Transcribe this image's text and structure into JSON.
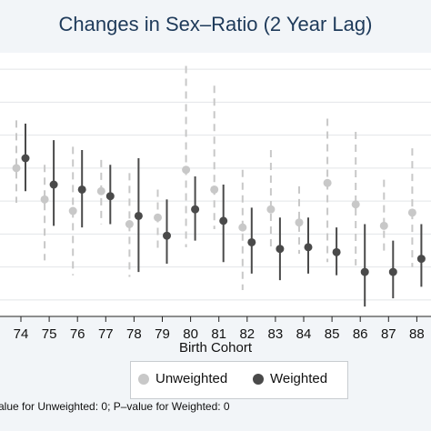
{
  "chart_data": {
    "type": "scatter",
    "title": "Changes in Sex–Ratio (2 Year Lag)",
    "xlabel": "Birth Cohort",
    "ylabel": "",
    "categories": [
      "74",
      "75",
      "76",
      "77",
      "78",
      "79",
      "80",
      "81",
      "82",
      "83",
      "84",
      "85",
      "86",
      "87",
      "88"
    ],
    "series": [
      {
        "name": "Unweighted",
        "color": "#c8c8c8",
        "errorbar_style": "dashed",
        "points": [
          {
            "x": "74",
            "y": 0.6,
            "lo": 0.39,
            "hi": 0.89
          },
          {
            "x": "75",
            "y": 0.41,
            "lo": 0.04,
            "hi": 0.62
          },
          {
            "x": "76",
            "y": 0.34,
            "lo": -0.05,
            "hi": 0.73
          },
          {
            "x": "77",
            "y": 0.46,
            "lo": 0.26,
            "hi": 0.65
          },
          {
            "x": "78",
            "y": 0.26,
            "lo": -0.06,
            "hi": 0.57
          },
          {
            "x": "79",
            "y": 0.3,
            "lo": 0.11,
            "hi": 0.47
          },
          {
            "x": "80",
            "y": 0.59,
            "lo": 0.12,
            "hi": 1.22
          },
          {
            "x": "81",
            "y": 0.47,
            "lo": 0.23,
            "hi": 1.1
          },
          {
            "x": "82",
            "y": 0.24,
            "lo": -0.14,
            "hi": 0.59
          },
          {
            "x": "83",
            "y": 0.35,
            "lo": 0.11,
            "hi": 0.71
          },
          {
            "x": "84",
            "y": 0.27,
            "lo": 0.08,
            "hi": 0.49
          },
          {
            "x": "85",
            "y": 0.51,
            "lo": 0.03,
            "hi": 0.9
          },
          {
            "x": "86",
            "y": 0.38,
            "lo": 0.01,
            "hi": 0.82
          },
          {
            "x": "87",
            "y": 0.25,
            "lo": 0.07,
            "hi": 0.53
          },
          {
            "x": "88",
            "y": 0.33,
            "lo": 0.0,
            "hi": 0.72
          }
        ]
      },
      {
        "name": "Weighted",
        "color": "#4a4a4a",
        "errorbar_style": "solid",
        "points": [
          {
            "x": "74",
            "y": 0.66,
            "lo": 0.46,
            "hi": 0.87
          },
          {
            "x": "75",
            "y": 0.5,
            "lo": 0.25,
            "hi": 0.77
          },
          {
            "x": "76",
            "y": 0.47,
            "lo": 0.24,
            "hi": 0.71
          },
          {
            "x": "77",
            "y": 0.43,
            "lo": 0.26,
            "hi": 0.62
          },
          {
            "x": "78",
            "y": 0.31,
            "lo": -0.03,
            "hi": 0.66
          },
          {
            "x": "79",
            "y": 0.19,
            "lo": 0.02,
            "hi": 0.41
          },
          {
            "x": "80",
            "y": 0.35,
            "lo": 0.16,
            "hi": 0.55
          },
          {
            "x": "81",
            "y": 0.28,
            "lo": 0.03,
            "hi": 0.5
          },
          {
            "x": "82",
            "y": 0.15,
            "lo": -0.04,
            "hi": 0.36
          },
          {
            "x": "83",
            "y": 0.11,
            "lo": -0.08,
            "hi": 0.3
          },
          {
            "x": "84",
            "y": 0.12,
            "lo": -0.04,
            "hi": 0.3
          },
          {
            "x": "85",
            "y": 0.09,
            "lo": -0.05,
            "hi": 0.24
          },
          {
            "x": "86",
            "y": -0.03,
            "lo": -0.24,
            "hi": 0.26
          },
          {
            "x": "87",
            "y": -0.03,
            "lo": -0.19,
            "hi": 0.16
          },
          {
            "x": "88",
            "y": 0.05,
            "lo": -0.12,
            "hi": 0.26
          }
        ]
      }
    ],
    "ylim": [
      -0.3,
      1.3
    ],
    "gridlines_y": [
      -0.2,
      0.0,
      0.2,
      0.4,
      0.6,
      0.8,
      1.0,
      1.2
    ],
    "grid": true,
    "legend": "bottom",
    "note": "alue for Unweighted: 0; P–value for Weighted: 0"
  }
}
